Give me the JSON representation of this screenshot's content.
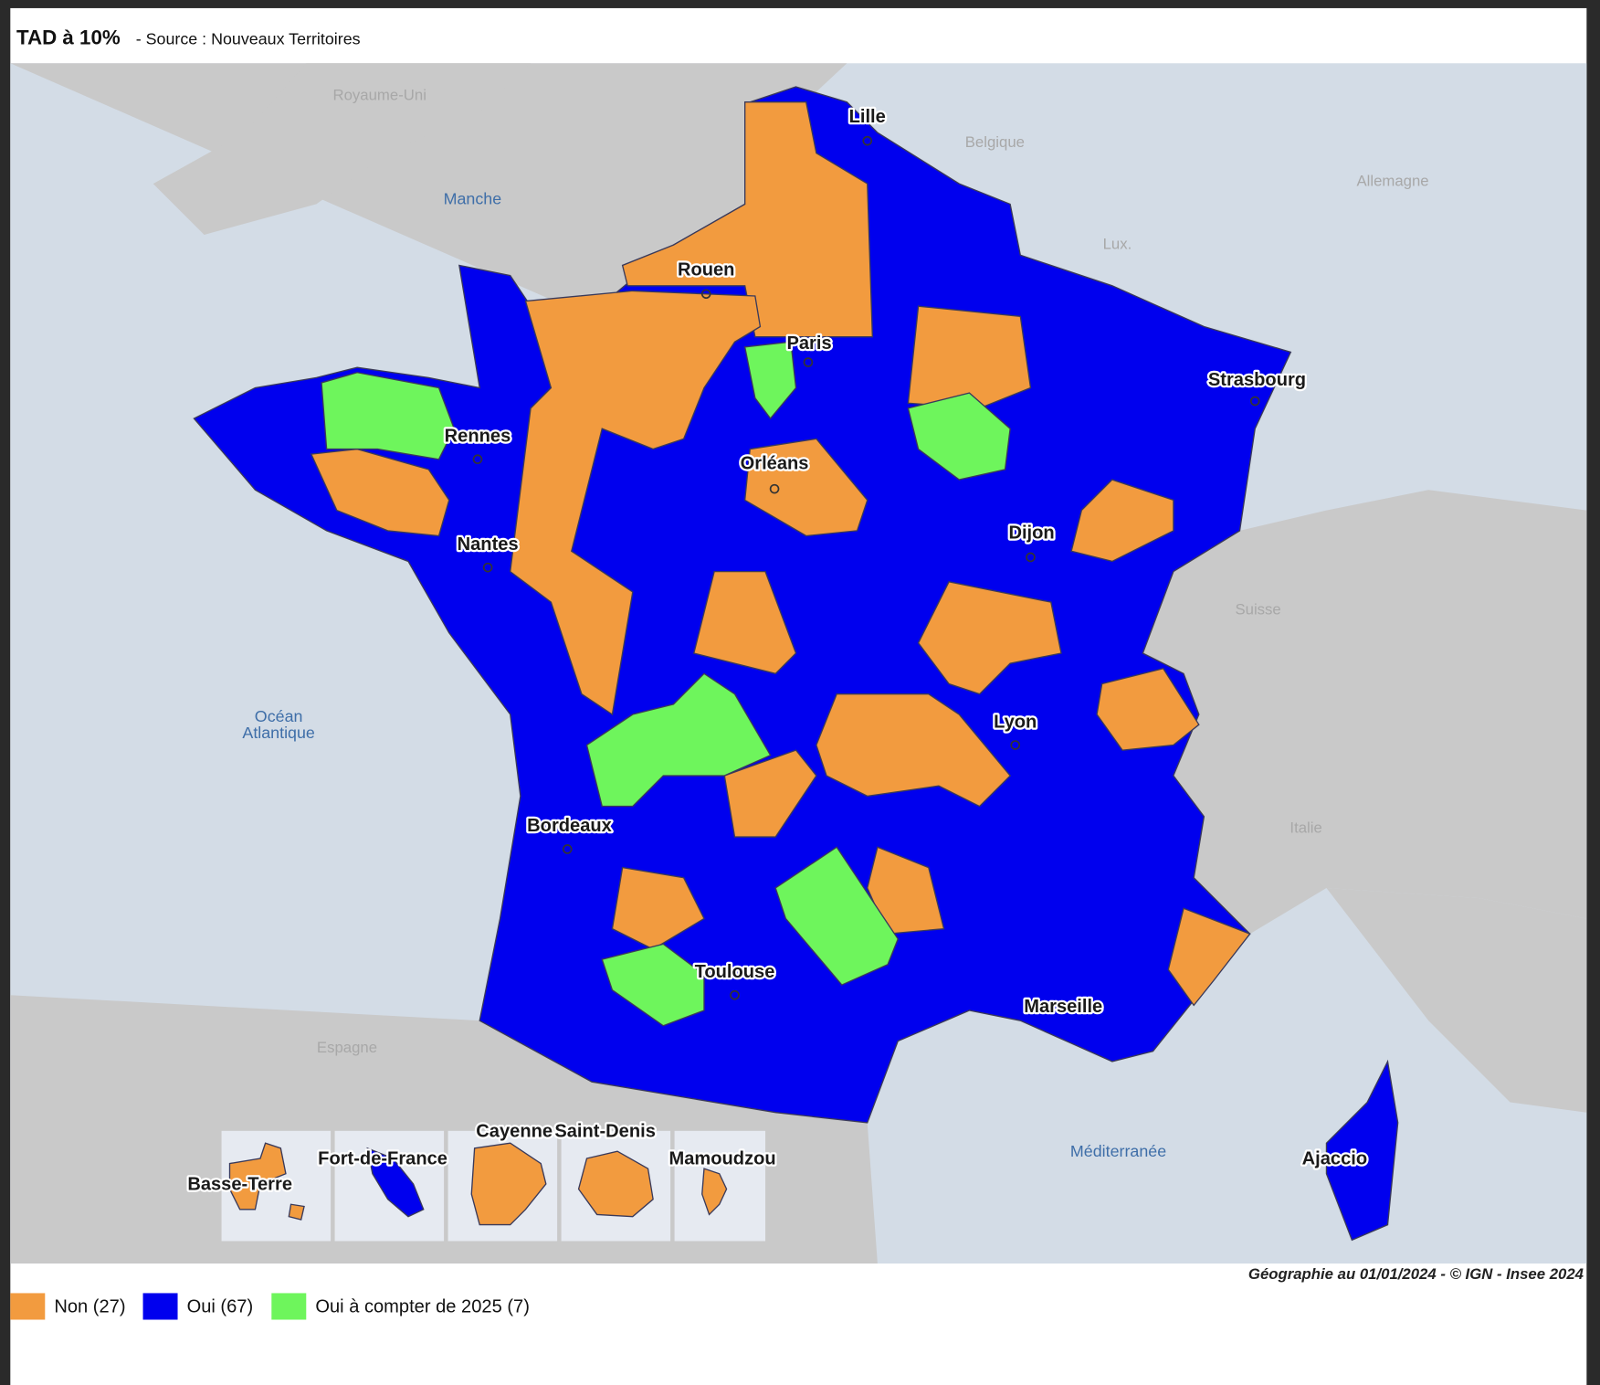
{
  "header": {
    "title": "TAD à 10%",
    "source": "- Source : Nouveaux Territoires"
  },
  "map": {
    "cities": [
      "Lille",
      "Rouen",
      "Paris",
      "Strasbourg",
      "Rennes",
      "Orléans",
      "Dijon",
      "Nantes",
      "Lyon",
      "Bordeaux",
      "Toulouse",
      "Marseille",
      "Ajaccio",
      "Basse-Terre",
      "Fort-de-France",
      "Cayenne",
      "Saint-Denis",
      "Mamoudzou"
    ],
    "countries": [
      "Royaume-Uni",
      "Belgique",
      "Allemagne",
      "Lux.",
      "Suisse",
      "Italie",
      "Espagne"
    ],
    "seas": [
      "Manche",
      "Océan",
      "Atlantique",
      "Méditerranée"
    ]
  },
  "legend": [
    {
      "label": "Non (27)",
      "color": "#f29b3f"
    },
    {
      "label": "Oui (67)",
      "color": "#0000ee"
    },
    {
      "label": "Oui à compter de 2025 (7)",
      "color": "#6ef55c"
    }
  ],
  "footer": {
    "credit": "Géographie au 01/01/2024 - © IGN - Insee 2024"
  }
}
